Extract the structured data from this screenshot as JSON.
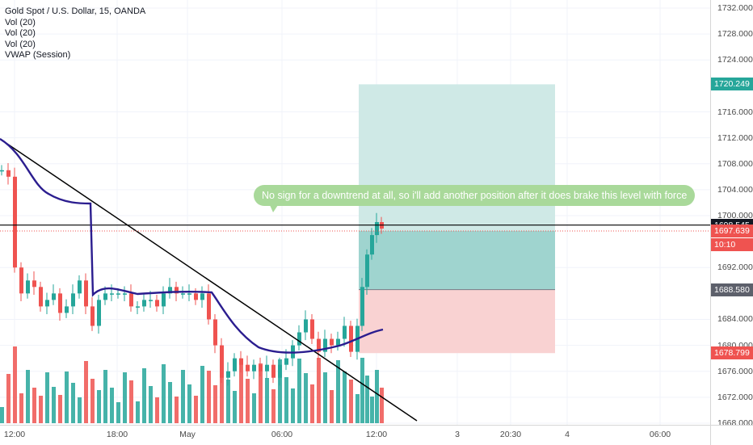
{
  "legend": {
    "title": "Gold Spot / U.S. Dollar, 15, OANDA",
    "lines": [
      "Vol (20)",
      "Vol (20)",
      "Vol (20)",
      "VWAP (Session)"
    ]
  },
  "annotation": "No sign for a downtrend at all, so i'll add another position after it does brake this level with force",
  "colors": {
    "up": "#26a69a",
    "down": "#ef5350",
    "vwap": "#2b1d8f",
    "trendline": "#000000",
    "profit_zone": "#cfe9e6",
    "profit_zone_deep": "#9fd4cf",
    "loss_zone": "#f9d2d2",
    "bubble": "#a9d99a"
  },
  "chart_data": {
    "type": "candlestick",
    "symbol": "Gold Spot / U.S. Dollar",
    "interval": "15",
    "source": "OANDA",
    "y_range": [
      1666,
      1733
    ],
    "y_ticks": [
      "1732.000",
      "1728.000",
      "1724.000",
      "1716.000",
      "1712.000",
      "1708.000",
      "1704.000",
      "1700.000",
      "1692.000",
      "1684.000",
      "1680.000",
      "1676.000",
      "1672.000",
      "1668.000"
    ],
    "x_ticks": [
      "12:00",
      "18:00",
      "May",
      "06:00",
      "12:00",
      "3",
      "20:30",
      "4",
      "06:00"
    ],
    "price_labels": [
      {
        "text": "1720.249",
        "value": 1720.249,
        "color": "#26a69a"
      },
      {
        "text": "1698.545",
        "value": 1698.545,
        "color": "#131722"
      },
      {
        "text": "1697.639",
        "value": 1697.639,
        "color": "#ef5350"
      },
      {
        "text": "10:10",
        "value": 1695.5,
        "color": "#ef5350"
      },
      {
        "text": "1688.580",
        "value": 1688.58,
        "color": "#5d606b"
      },
      {
        "text": "1678.799",
        "value": 1678.799,
        "color": "#ef5350"
      }
    ],
    "long_position": {
      "entry": 1688.58,
      "take_profit": 1720.249,
      "stop_loss": 1678.799
    },
    "horizontal_line": 1698.545,
    "last_price": 1697.639,
    "series": [
      {
        "name": "Vol (20)"
      },
      {
        "name": "VWAP (Session)"
      }
    ]
  }
}
